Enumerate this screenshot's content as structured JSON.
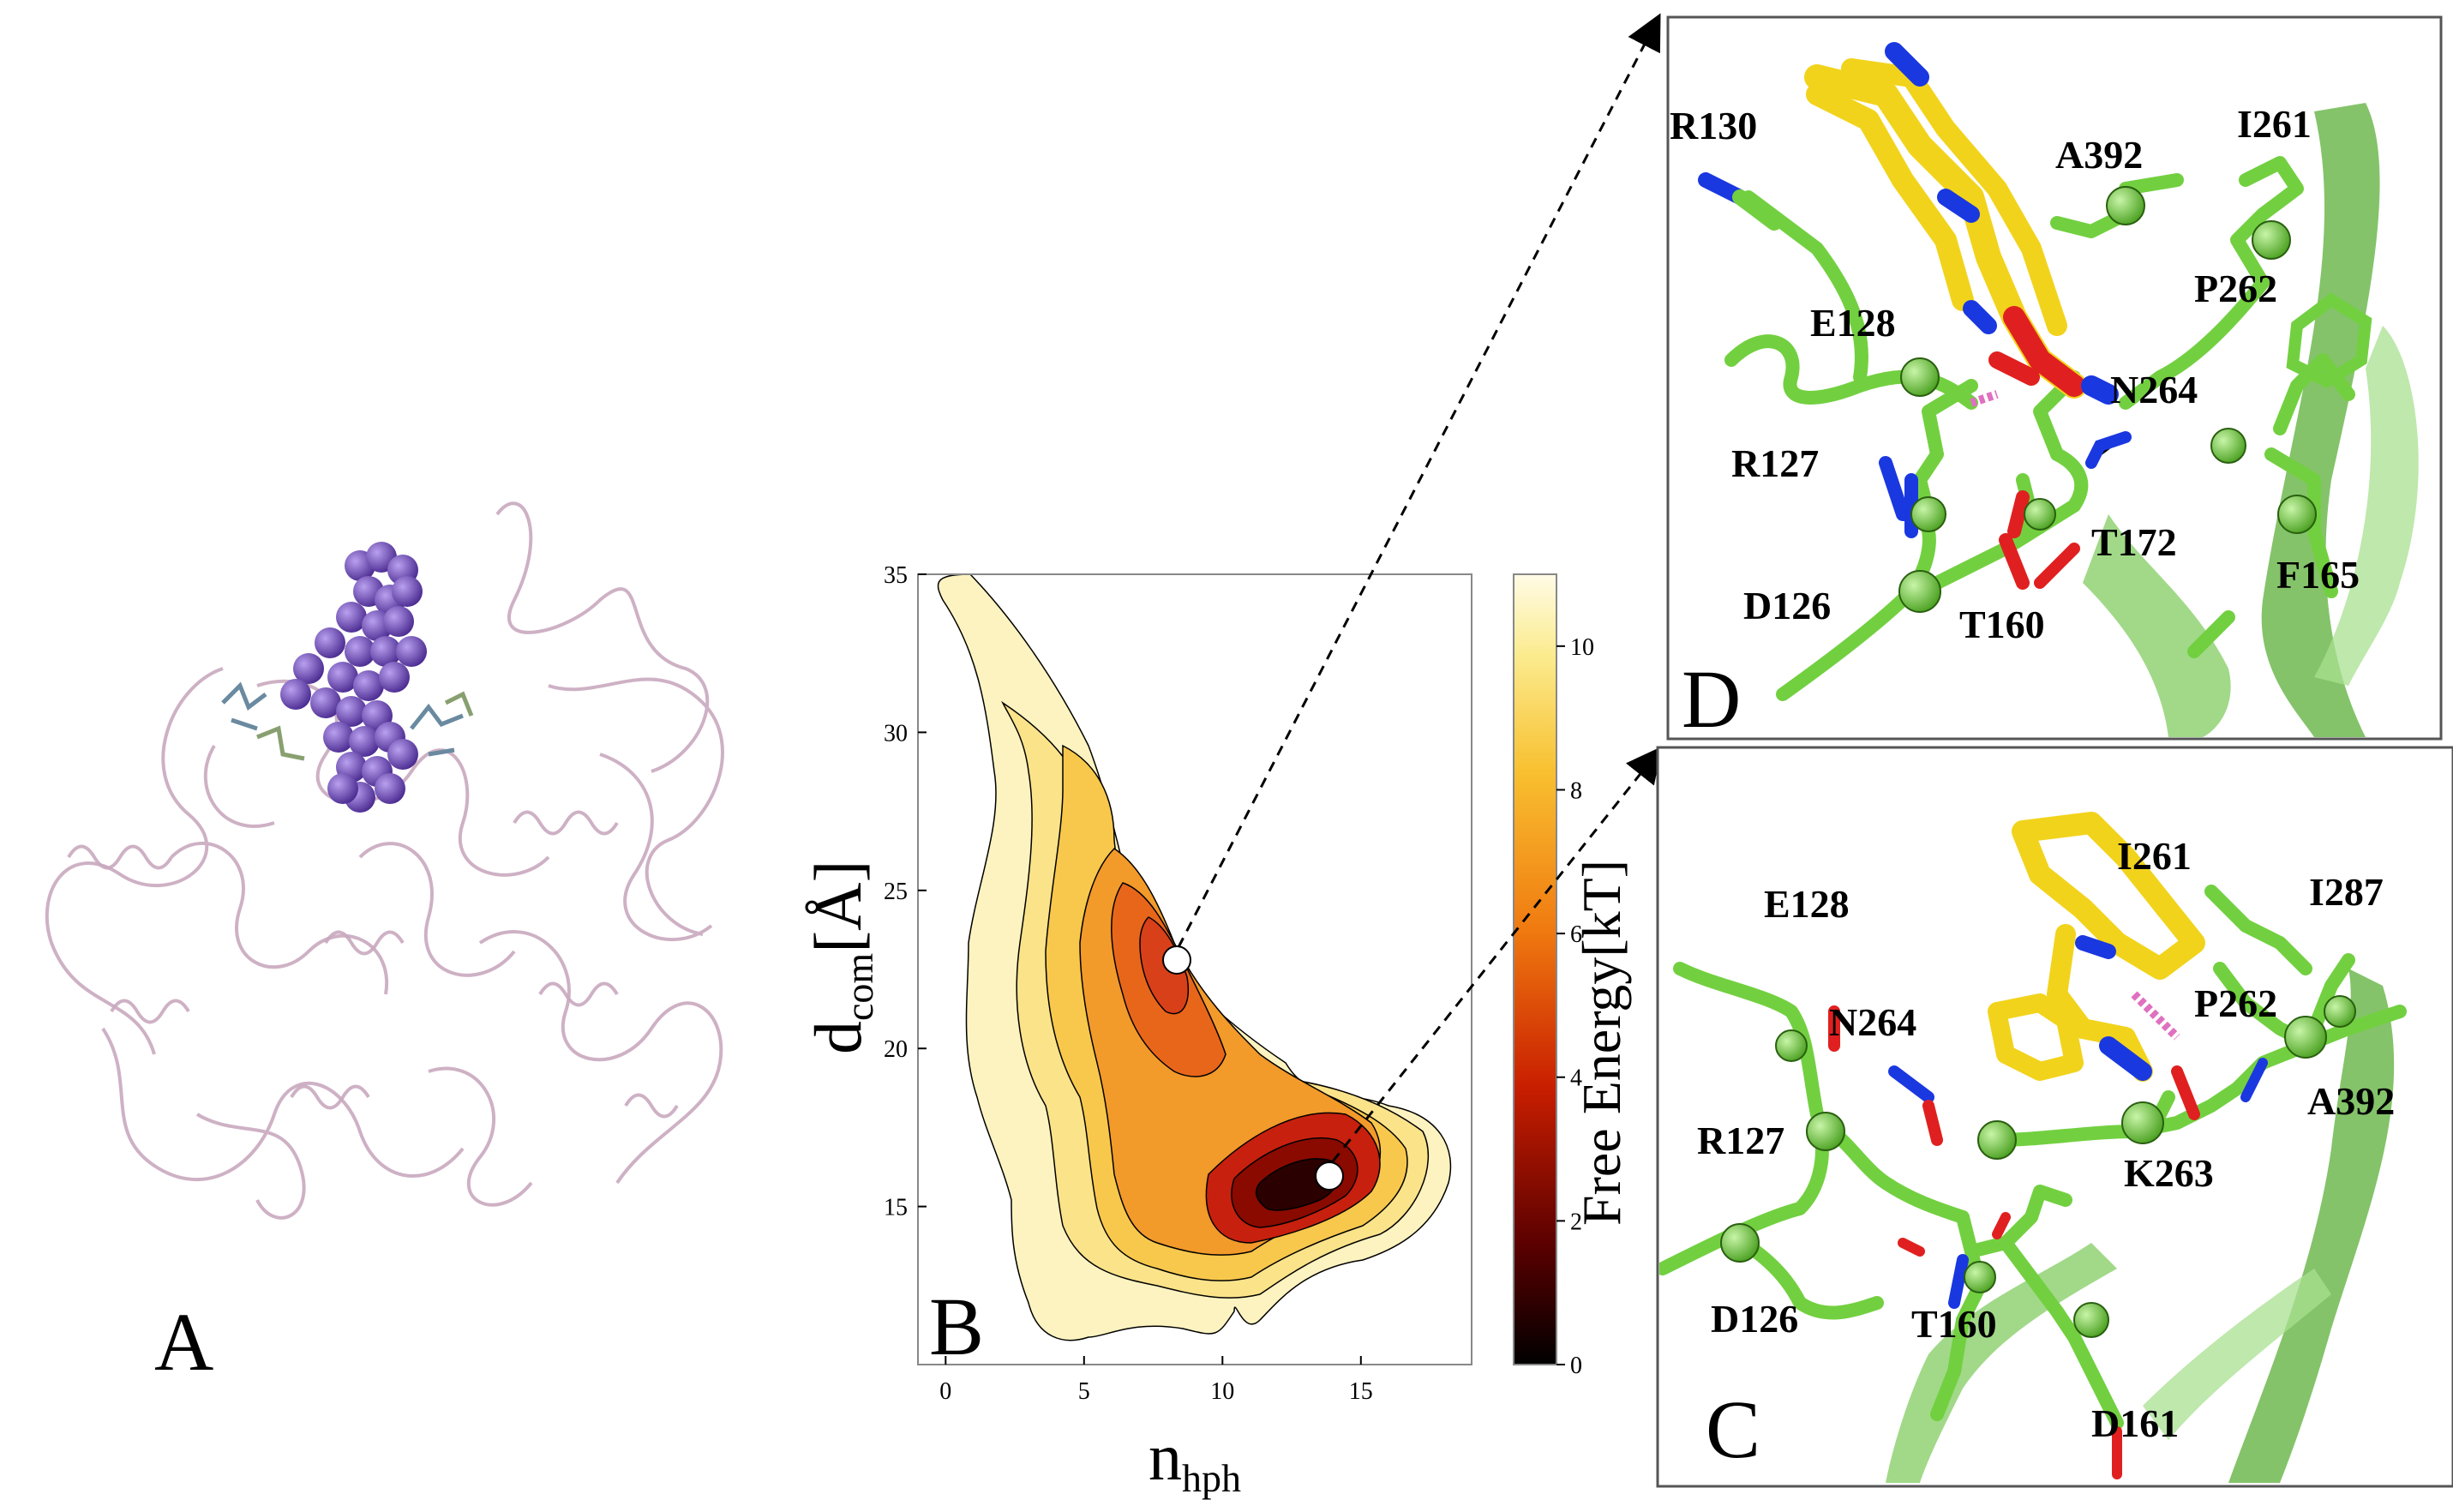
{
  "figure": {
    "panels": {
      "A": {
        "letter": "A"
      },
      "B": {
        "letter": "B",
        "xlabel_main": "n",
        "xlabel_sub": "hph",
        "ylabel_main": "d",
        "ylabel_sub": "com",
        "ylabel_unit": "[Å]",
        "colorbar_label": "Free Energy[kT]"
      },
      "C": {
        "letter": "C",
        "residues": [
          "E128",
          "I261",
          "I287",
          "N264",
          "P262",
          "A392",
          "R127",
          "K263",
          "D126",
          "T160",
          "D161"
        ]
      },
      "D": {
        "letter": "D",
        "residues": [
          "R130",
          "A392",
          "I261",
          "P262",
          "E128",
          "N264",
          "R127",
          "T172",
          "D126",
          "F165",
          "T160"
        ]
      }
    },
    "colors": {
      "protein_ribbon": "#c9a9bf",
      "ligand_spheres": "#7b4fc0",
      "residue_green": "#86e05a",
      "ligand_yellow": "#f5d020",
      "oxygen_red": "#e01010",
      "nitrogen_blue": "#1a3ae0",
      "hbond_magenta": "#e070c0"
    }
  },
  "chart_data": {
    "type": "heatmap",
    "xlabel": "n_hph",
    "ylabel": "d_com [Å]",
    "xlim": [
      -1,
      19
    ],
    "ylim": [
      10,
      35
    ],
    "xticks": [
      0,
      5,
      10,
      15
    ],
    "yticks": [
      15,
      20,
      25,
      30,
      35
    ],
    "colorbar": {
      "label": "Free Energy[kT]",
      "range": [
        0,
        11
      ],
      "ticks": [
        0,
        2,
        4,
        6,
        8,
        10
      ]
    },
    "minima": [
      {
        "x": 8.3,
        "y": 22.7,
        "free_energy": 4,
        "links_to_panel": "D"
      },
      {
        "x": 13.6,
        "y": 15.7,
        "free_energy": 0,
        "links_to_panel": "C"
      }
    ],
    "contour_levels": [
      1,
      2,
      3,
      4,
      5,
      6,
      7,
      8,
      9,
      10
    ]
  }
}
